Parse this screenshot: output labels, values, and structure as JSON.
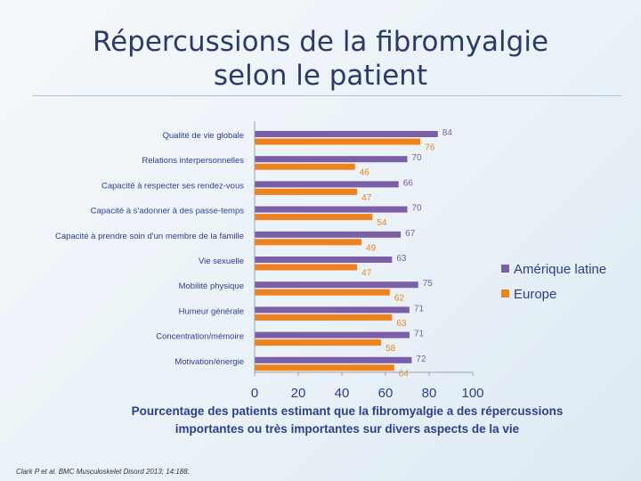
{
  "slide": {
    "title_line1": "Répercussions de la fibromyalgie",
    "title_line2": "selon le patient",
    "caption_line1": "Pourcentage des patients estimant que la fibromyalgie a des répercussions",
    "caption_line2": "importantes ou très importantes sur divers aspects de la vie",
    "citation": "Clark P et al. BMC Musculoskelet Disord 2013; 14:188."
  },
  "chart_data": {
    "type": "bar",
    "orientation": "horizontal",
    "categories": [
      "Qualité de vie globale",
      "Relations interpersonnelles",
      "Capacité à respecter ses rendez-vous",
      "Capacité à s'adonner à des passe-temps",
      "Capacité à prendre soin d'un membre de la famille",
      "Vie sexuelle",
      "Mobilité physique",
      "Humeur générale",
      "Concentration/mémoire",
      "Motivation/énergie"
    ],
    "series": [
      {
        "name": "Amérique latine",
        "color": "#7a5ea6",
        "values": [
          84,
          70,
          66,
          70,
          67,
          63,
          75,
          71,
          71,
          72
        ]
      },
      {
        "name": "Europe",
        "color": "#f0821e",
        "values": [
          76,
          46,
          47,
          54,
          49,
          47,
          62,
          63,
          58,
          64
        ]
      }
    ],
    "xlim": [
      0,
      100
    ],
    "xticks": [
      "0",
      "20",
      "40",
      "60",
      "80",
      "100"
    ],
    "legend_position": "right",
    "grid": false,
    "data_labels": true
  }
}
